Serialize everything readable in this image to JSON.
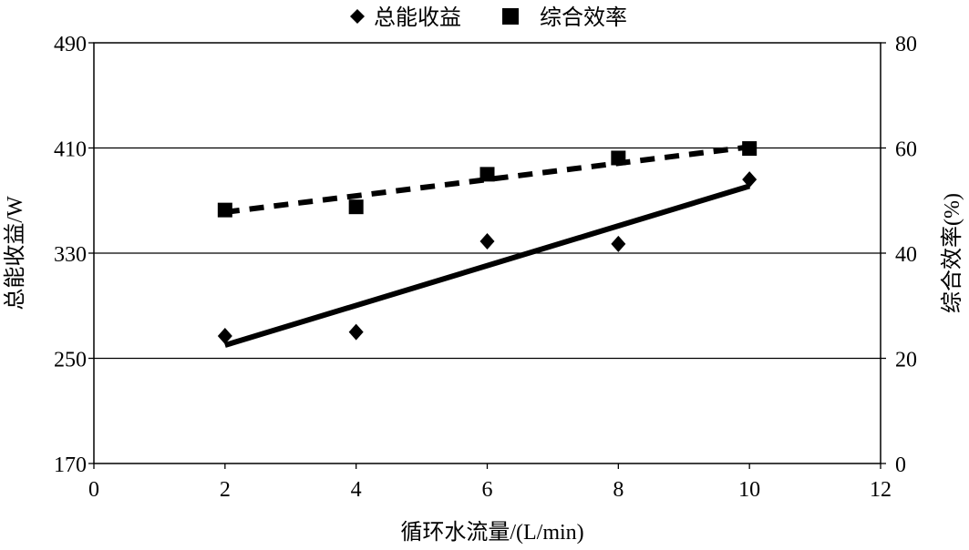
{
  "chart_data": {
    "type": "scatter",
    "title": "",
    "xlabel": "循环水流量/(L/min)",
    "ylabel_left": "总能收益/W",
    "ylabel_right": "综合效率(%)",
    "xlim": [
      0,
      12
    ],
    "ylim_left": [
      170,
      490
    ],
    "ylim_right": [
      0,
      80
    ],
    "x_ticks": [
      "0",
      "2",
      "4",
      "6",
      "8",
      "10",
      "12"
    ],
    "y_left_ticks": [
      "170",
      "250",
      "330",
      "410",
      "490"
    ],
    "y_right_ticks": [
      "0",
      "20",
      "40",
      "60",
      "80"
    ],
    "grid": "horizontal",
    "legend_position": "top-center",
    "series": [
      {
        "name": "总能收益",
        "axis": "left",
        "marker": "diamond",
        "x": [
          2,
          4,
          6,
          8,
          10
        ],
        "y": [
          267,
          270,
          339,
          337,
          386
        ],
        "trendline": {
          "style": "solid",
          "x": [
            2,
            10
          ],
          "y": [
            260,
            381
          ]
        }
      },
      {
        "name": "综合效率",
        "axis": "right",
        "marker": "square",
        "x": [
          2,
          4,
          6,
          8,
          10
        ],
        "y": [
          48.2,
          48.8,
          55.0,
          58.1,
          59.9
        ],
        "trendline": {
          "style": "dashed",
          "x": [
            2,
            10
          ],
          "y": [
            47.8,
            60.2
          ]
        }
      }
    ]
  }
}
